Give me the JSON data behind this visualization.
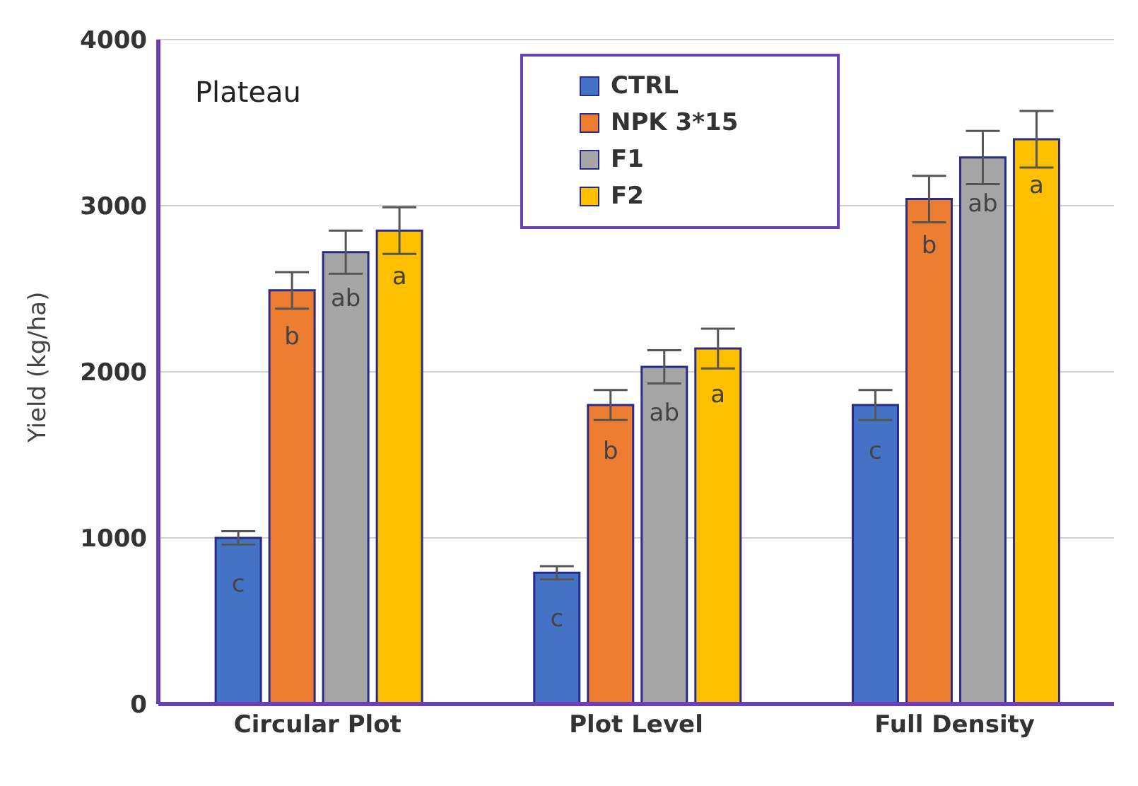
{
  "chart_data": {
    "type": "bar",
    "title": "Plateau",
    "ylabel": "Yield (kg/ha)",
    "categories": [
      "Circular Plot",
      "Plot Level",
      "Full Density"
    ],
    "series": [
      {
        "name": "CTRL",
        "color": "#4472c4",
        "values": [
          1000,
          790,
          1800
        ],
        "errors": [
          40,
          40,
          90
        ]
      },
      {
        "name": "NPK 3*15",
        "color": "#ed7d31",
        "values": [
          2490,
          1800,
          3040
        ],
        "errors": [
          110,
          90,
          140
        ]
      },
      {
        "name": "F1",
        "color": "#a5a5a5",
        "values": [
          2720,
          2030,
          3290
        ],
        "errors": [
          130,
          100,
          160
        ]
      },
      {
        "name": "F2",
        "color": "#ffc000",
        "values": [
          2850,
          2140,
          3400
        ],
        "errors": [
          140,
          120,
          170
        ]
      }
    ],
    "annotations": [
      "c",
      "b",
      "ab",
      "a",
      "c",
      "b",
      "ab",
      "a",
      "c",
      "b",
      "ab",
      "a"
    ],
    "ylim": [
      0,
      4000
    ],
    "yticks": [
      0,
      1000,
      2000,
      3000,
      4000
    ],
    "grid": "y",
    "legend": "top"
  }
}
